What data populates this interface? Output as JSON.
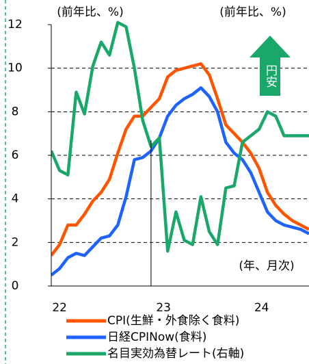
{
  "chart_data": {
    "type": "line",
    "left_unit": "(前年比、%)",
    "right_unit": "(前年比、%)",
    "annotation": "(年、月次)",
    "arrow_label": "円安",
    "xlim": [
      0,
      31
    ],
    "xticks": [
      {
        "value": 1,
        "label": "22"
      },
      {
        "value": 13.5,
        "label": "23"
      },
      {
        "value": 25.3,
        "label": "24"
      }
    ],
    "ylim": [
      0,
      12
    ],
    "yticks": [
      0,
      2,
      4,
      6,
      8,
      10,
      12
    ],
    "grid": true,
    "x": [
      0,
      1,
      2,
      3,
      4,
      5,
      6,
      7,
      8,
      9,
      10,
      11,
      12,
      13,
      14,
      15,
      16,
      17,
      18,
      19,
      20,
      21,
      22,
      23,
      24,
      25,
      26,
      27,
      28,
      29,
      30,
      31
    ],
    "series": [
      {
        "name": "CPI(生鮮・外食除く食料)",
        "color": "#ff5500",
        "values": [
          1.4,
          1.9,
          2.8,
          2.8,
          3.3,
          3.9,
          4.3,
          4.9,
          6.1,
          7.2,
          7.8,
          7.8,
          8.2,
          8.6,
          9.6,
          9.9,
          10.0,
          10.1,
          10.2,
          9.7,
          8.6,
          7.4,
          7.0,
          6.6,
          6.1,
          5.4,
          4.3,
          3.7,
          3.3,
          3.0,
          2.8,
          2.6
        ]
      },
      {
        "name": "日経CPINow(食料)",
        "color": "#1f63ff",
        "values": [
          0.5,
          0.8,
          1.3,
          1.5,
          1.4,
          1.8,
          2.2,
          2.3,
          2.8,
          4.1,
          5.8,
          5.9,
          6.2,
          6.8,
          7.8,
          8.3,
          8.6,
          8.8,
          9.1,
          8.7,
          8.0,
          6.6,
          6.1,
          5.8,
          5.2,
          4.3,
          3.4,
          3.0,
          2.8,
          2.7,
          2.6,
          2.4
        ]
      },
      {
        "name": "名目実効為替レート(右軸)",
        "color": "#1aa86a",
        "values": [
          6.2,
          5.3,
          5.1,
          8.9,
          7.9,
          10.1,
          11.2,
          10.6,
          12.1,
          11.9,
          10.0,
          7.6,
          6.4,
          6.8,
          1.6,
          3.4,
          2.1,
          1.9,
          4.1,
          2.5,
          1.9,
          4.5,
          4.6,
          6.6,
          6.9,
          7.2,
          8.0,
          7.8,
          6.9,
          6.9,
          6.9,
          6.9
        ]
      }
    ]
  }
}
